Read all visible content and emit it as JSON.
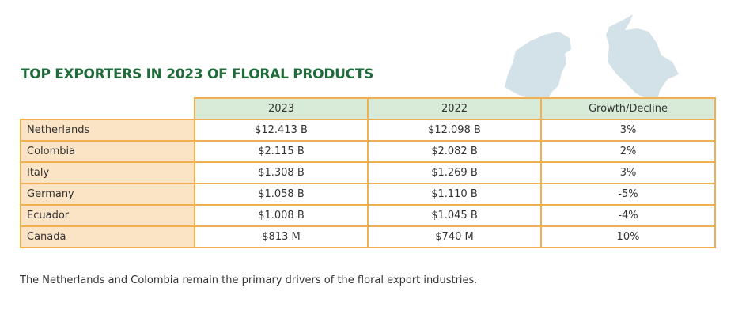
{
  "colors": {
    "title": "#1f6b3a",
    "border": "#f0b050",
    "header_bg": "#d7ebd8",
    "country_bg": "#fbe3c6",
    "map_fill": "#d3e1e8"
  },
  "decoration": {
    "maps": [
      "netherlands-map-icon",
      "colombia-map-icon"
    ]
  },
  "title": "TOP EXPORTERS IN 2023 OF FLORAL PRODUCTS",
  "table": {
    "headers": [
      "2023",
      "2022",
      "Growth/Decline"
    ],
    "rows": [
      {
        "country": "Netherlands",
        "y2023": "$12.413 B",
        "y2022": "$12.098 B",
        "growth": "3%"
      },
      {
        "country": "Colombia",
        "y2023": "$2.115 B",
        "y2022": "$2.082 B",
        "growth": "2%"
      },
      {
        "country": "Italy",
        "y2023": "$1.308 B",
        "y2022": "$1.269 B",
        "growth": "3%"
      },
      {
        "country": "Germany",
        "y2023": "$1.058 B",
        "y2022": "$1.110 B",
        "growth": "-5%"
      },
      {
        "country": "Ecuador",
        "y2023": "$1.008 B",
        "y2022": "$1.045 B",
        "growth": "-4%"
      },
      {
        "country": "Canada",
        "y2023": "$813 M",
        "y2022": "$740 M",
        "growth": "10%"
      }
    ]
  },
  "footnote": "The Netherlands and Colombia remain the primary drivers of the floral export industries."
}
